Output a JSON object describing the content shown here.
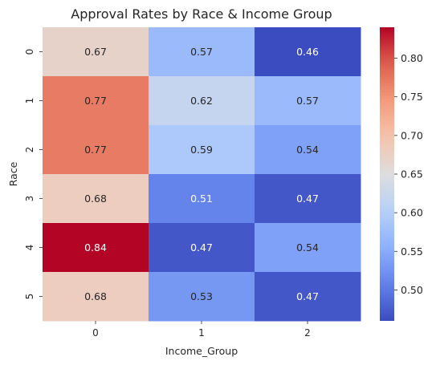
{
  "chart_data": {
    "type": "heatmap",
    "title": "Approval Rates by Race & Income Group",
    "xlabel": "Income_Group",
    "ylabel": "Race",
    "x_categories": [
      "0",
      "1",
      "2"
    ],
    "y_categories": [
      "0",
      "1",
      "2",
      "3",
      "4",
      "5"
    ],
    "values": [
      [
        0.67,
        0.57,
        0.46
      ],
      [
        0.77,
        0.62,
        0.57
      ],
      [
        0.77,
        0.59,
        0.54
      ],
      [
        0.68,
        0.51,
        0.47
      ],
      [
        0.84,
        0.47,
        0.54
      ],
      [
        0.68,
        0.53,
        0.47
      ]
    ],
    "value_labels": [
      [
        "0.67",
        "0.57",
        "0.46"
      ],
      [
        "0.77",
        "0.62",
        "0.57"
      ],
      [
        "0.77",
        "0.59",
        "0.54"
      ],
      [
        "0.68",
        "0.51",
        "0.47"
      ],
      [
        "0.84",
        "0.47",
        "0.54"
      ],
      [
        "0.68",
        "0.53",
        "0.47"
      ]
    ],
    "colormap": "coolwarm",
    "colorbar": {
      "vmin": 0.46,
      "vmax": 0.84,
      "ticks": [
        0.5,
        0.55,
        0.6,
        0.65,
        0.7,
        0.75,
        0.8
      ],
      "tick_labels": [
        "0.50",
        "0.55",
        "0.60",
        "0.65",
        "0.70",
        "0.75",
        "0.80"
      ]
    },
    "grid": false,
    "legend": "colorbar-right"
  }
}
